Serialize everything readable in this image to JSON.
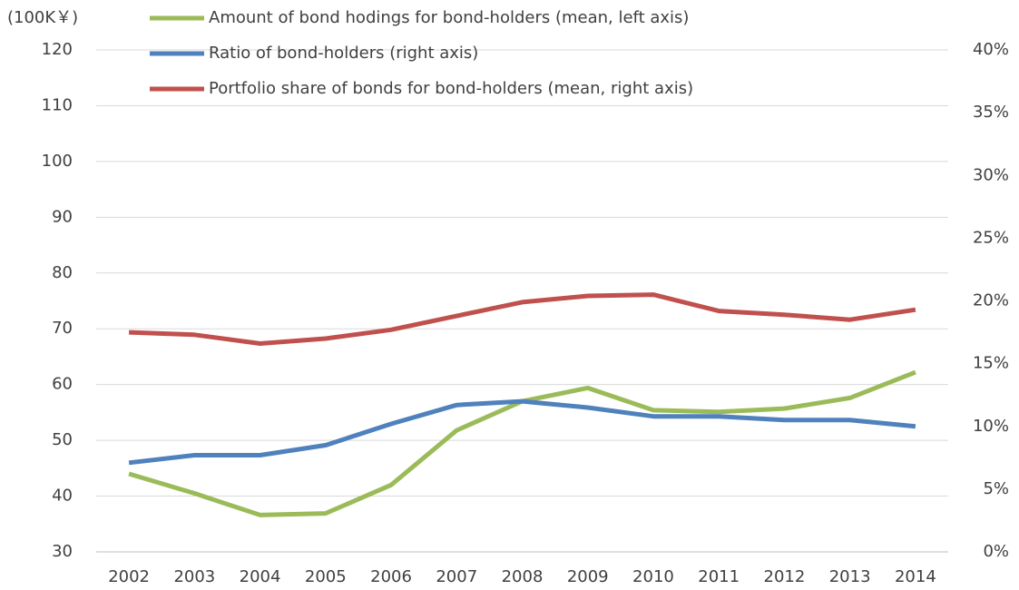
{
  "chart_data": {
    "type": "line",
    "y_label": "(100K￥)",
    "categories": [
      "2002",
      "2003",
      "2004",
      "2005",
      "2006",
      "2007",
      "2008",
      "2009",
      "2010",
      "2011",
      "2012",
      "2013",
      "2014"
    ],
    "series": [
      {
        "name": "Amount of bond hodings for bond-holders (mean, left axis)",
        "color": "#9bbb59",
        "axis": "y",
        "values": [
          44,
          40.5,
          36.6,
          36.9,
          42,
          51.8,
          57,
          59.4,
          55.4,
          55.1,
          55.7,
          57.6,
          62.2
        ]
      },
      {
        "name": "Ratio of bond-holders (right axis)",
        "color": "#4f81bd",
        "axis": "y2",
        "values": [
          7.1,
          7.7,
          7.7,
          8.5,
          10.2,
          11.7,
          12.0,
          11.5,
          10.8,
          10.8,
          10.5,
          10.5,
          10.0
        ]
      },
      {
        "name": "Portfolio share of bonds for bond-holders (mean, right axis)",
        "color": "#c0504d",
        "axis": "y2",
        "values": [
          17.5,
          17.3,
          16.6,
          17.0,
          17.7,
          18.8,
          19.9,
          20.4,
          20.5,
          19.2,
          18.9,
          18.5,
          19.3
        ]
      }
    ],
    "ylim": [
      30,
      120
    ],
    "yticks": [
      30,
      40,
      50,
      60,
      70,
      80,
      90,
      100,
      110,
      120
    ],
    "y2lim": [
      0,
      40
    ],
    "y2ticks": [
      {
        "value": 0,
        "label": "0%"
      },
      {
        "value": 5,
        "label": "5%"
      },
      {
        "value": 10,
        "label": "10%"
      },
      {
        "value": 15,
        "label": "15%"
      },
      {
        "value": 20,
        "label": "20%"
      },
      {
        "value": 25,
        "label": "25%"
      },
      {
        "value": 30,
        "label": "30%"
      },
      {
        "value": 35,
        "label": "35%"
      },
      {
        "value": 40,
        "label": "40%"
      }
    ],
    "grid": true
  }
}
